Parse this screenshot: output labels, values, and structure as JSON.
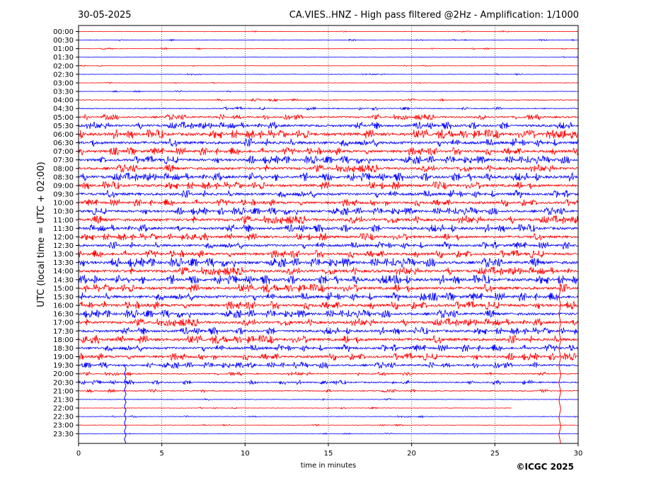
{
  "header": {
    "date": "30-05-2025",
    "title": "CA.VIES..HNZ - High pass filtered @2Hz - Amplification: 1/1000"
  },
  "footer": {
    "copyright": "©ICGC 2025"
  },
  "colors": {
    "odd_rows": "#ff0000",
    "even_rows": "#0000ff",
    "grid": "#000000"
  },
  "chart_data": {
    "type": "line",
    "title": "CA.VIES..HNZ - High pass filtered @2Hz - Amplification: 1/1000",
    "xlabel": "time in minutes",
    "ylabel": "UTC (local time = UTC + 02:00)",
    "xlim": [
      0,
      30
    ],
    "x_ticks": [
      0,
      5,
      10,
      15,
      20,
      25,
      30
    ],
    "grid": "vertical dotted lines at 5-minute intervals",
    "row_labels": [
      "00:00",
      "00:30",
      "01:00",
      "01:30",
      "02:00",
      "02:30",
      "03:00",
      "03:30",
      "04:00",
      "04:30",
      "05:00",
      "05:30",
      "06:00",
      "06:30",
      "07:00",
      "07:30",
      "08:00",
      "08:30",
      "09:00",
      "09:30",
      "10:00",
      "10:30",
      "11:00",
      "11:30",
      "12:00",
      "12:30",
      "13:00",
      "13:30",
      "14:00",
      "14:30",
      "15:00",
      "15:30",
      "16:00",
      "16:30",
      "17:00",
      "17:30",
      "18:00",
      "18:30",
      "19:00",
      "19:30",
      "20:00",
      "20:30",
      "21:00",
      "21:30",
      "22:00",
      "22:30",
      "23:00",
      "23:30"
    ],
    "row_colors_cycle": [
      "red",
      "blue"
    ],
    "noise_level": [
      0.4,
      0.5,
      0.5,
      0.4,
      0.4,
      0.5,
      0.4,
      0.5,
      0.8,
      1.0,
      1.8,
      2.4,
      3.0,
      2.8,
      2.6,
      2.6,
      2.6,
      2.8,
      2.6,
      2.6,
      2.4,
      2.4,
      2.8,
      2.6,
      2.4,
      2.4,
      2.6,
      3.0,
      2.8,
      3.0,
      2.8,
      2.8,
      2.8,
      2.6,
      2.6,
      2.4,
      2.8,
      2.4,
      2.4,
      2.0,
      1.2,
      1.4,
      1.0,
      0.6,
      0.5,
      0.6,
      0.5,
      0.4
    ],
    "row_end_minutes": {
      "44": 26.0,
      "45": 30.0
    },
    "events": [
      {
        "row": 43,
        "minute": 2.8,
        "amplitude": "large"
      },
      {
        "row": 44,
        "minute": 28.9,
        "amplitude": "large"
      }
    ]
  }
}
